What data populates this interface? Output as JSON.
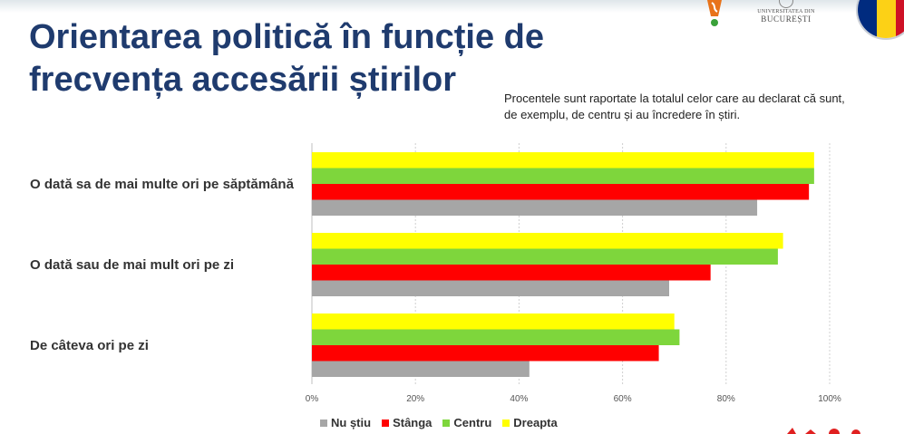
{
  "slide": {
    "title_line1": "Orientarea politică în funcție de",
    "title_line2": "frecvența accesării știrilor",
    "note_line1": "Procentele sunt raportate la totalul celor care au declarat că sunt,",
    "note_line2": "de exemplu, de centru și au încredere în știri.",
    "logo_university_line1": "UNIVERSITATEA DIN",
    "logo_university_line2": "BUCUREȘTI",
    "flag_colors": [
      "#002b7f",
      "#fcd116",
      "#ce1126"
    ]
  },
  "colors": {
    "accent_title": "#1f3b6e",
    "nu_stiu": "#a6a6a6",
    "stanga": "#ff0000",
    "centru": "#7ed63c",
    "dreapta": "#ffff00"
  },
  "chart_data": {
    "type": "bar",
    "orientation": "horizontal",
    "categories": [
      "O dată sa de mai multe ori pe săptămână",
      "O dată sau de mai mult ori pe zi",
      "De câteva ori pe zi"
    ],
    "series": [
      {
        "name": "Dreapta",
        "color": "#ffff00",
        "values": [
          97,
          91,
          70
        ]
      },
      {
        "name": "Centru",
        "color": "#7ed63c",
        "values": [
          97,
          90,
          71
        ]
      },
      {
        "name": "Stânga",
        "color": "#ff0000",
        "values": [
          96,
          77,
          67
        ]
      },
      {
        "name": "Nu știu",
        "color": "#a6a6a6",
        "values": [
          86,
          69,
          42
        ]
      }
    ],
    "legend": [
      {
        "name": "Nu știu",
        "color": "#a6a6a6"
      },
      {
        "name": "Stânga",
        "color": "#ff0000"
      },
      {
        "name": "Centru",
        "color": "#7ed63c"
      },
      {
        "name": "Dreapta",
        "color": "#ffff00"
      }
    ],
    "xticks": [
      "0%",
      "20%",
      "40%",
      "60%",
      "80%",
      "100%"
    ],
    "xlim": [
      0,
      100
    ],
    "grid": true,
    "legend_position": "bottom"
  }
}
